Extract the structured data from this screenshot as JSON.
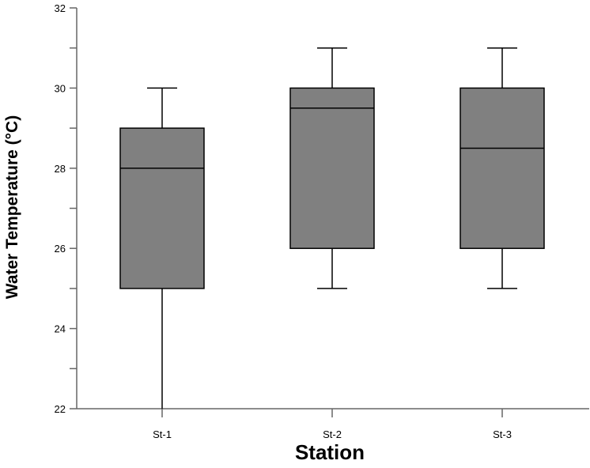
{
  "chart_data": {
    "type": "box",
    "categories": [
      "St-1",
      "St-2",
      "St-3"
    ],
    "boxes": [
      {
        "category": "St-1",
        "min": 22,
        "q1": 25,
        "median": 28,
        "q3": 29,
        "max": 30
      },
      {
        "category": "St-2",
        "min": 25,
        "q1": 26,
        "median": 29.5,
        "q3": 30,
        "max": 31
      },
      {
        "category": "St-3",
        "min": 25,
        "q1": 26,
        "median": 28.5,
        "q3": 30,
        "max": 31
      }
    ],
    "xlabel": "Station",
    "ylabel": "Water Temperature (°C)",
    "ylim": [
      22,
      32
    ],
    "yticks_major": [
      22,
      24,
      26,
      28,
      30,
      32
    ],
    "yticks_minor": [
      23,
      25,
      27,
      29,
      31
    ],
    "grid": false,
    "box_color": "#808080"
  }
}
